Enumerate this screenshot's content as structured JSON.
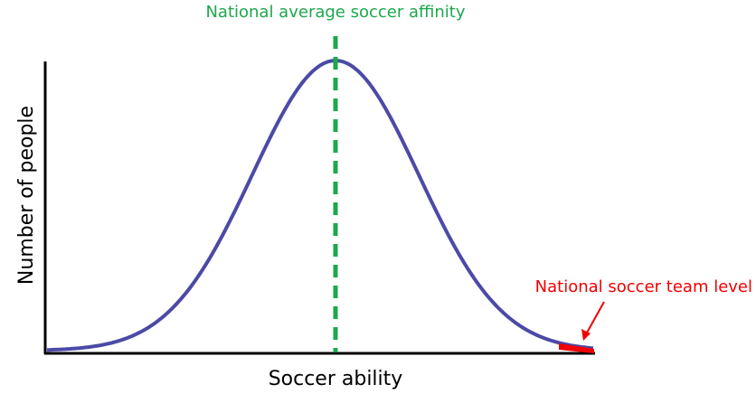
{
  "annotations": {
    "mean_label": "National average soccer affinity",
    "team_label": "National soccer team level"
  },
  "axes": {
    "x_label": "Soccer ability",
    "y_label": "Number of people"
  }
}
